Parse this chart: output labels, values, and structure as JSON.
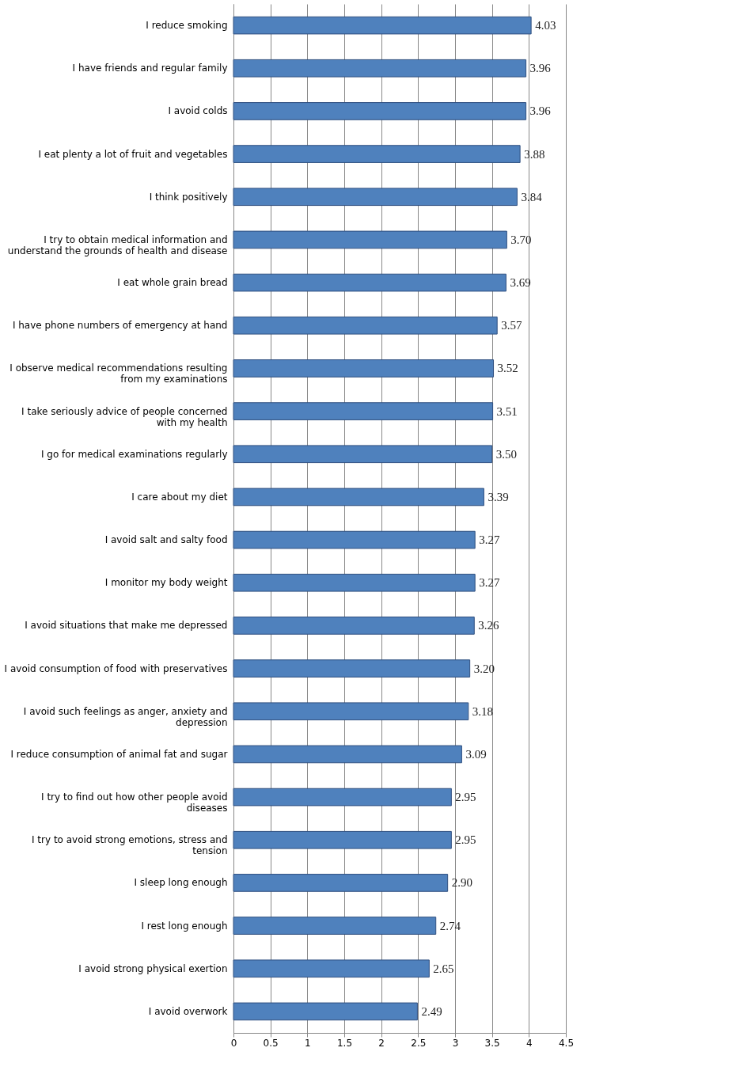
{
  "chart_data": {
    "type": "bar",
    "orientation": "horizontal",
    "categories": [
      "I reduce smoking",
      "I have friends and regular family",
      "I avoid colds",
      "I eat plenty a lot of fruit and vegetables",
      "I think positively",
      "I try to obtain medical information and understand the grounds of health and disease",
      "I eat whole grain bread",
      "I have phone numbers of emergency at hand",
      "I observe medical recommendations resulting from my examinations",
      "I take seriously advice of people concerned with my health",
      "I go for medical examinations regularly",
      "I care about my diet",
      "I avoid salt and salty food",
      "I monitor my body weight",
      "I avoid situations that make me depressed",
      "I avoid consumption of food with preservatives",
      "I avoid such feelings as anger, anxiety and depression",
      "I reduce consumption of animal fat and sugar",
      "I try to find out how other people avoid diseases",
      "I try to avoid strong emotions, stress and tension",
      "I sleep long enough",
      "I rest long enough",
      "I avoid strong physical exertion",
      "I avoid overwork"
    ],
    "values": [
      4.03,
      3.96,
      3.96,
      3.88,
      3.84,
      3.7,
      3.69,
      3.57,
      3.52,
      3.51,
      3.5,
      3.39,
      3.27,
      3.27,
      3.26,
      3.2,
      3.18,
      3.09,
      2.95,
      2.95,
      2.9,
      2.74,
      2.65,
      2.49
    ],
    "value_labels": [
      "4.03",
      "3.96",
      "3.96",
      "3.88",
      "3.84",
      "3.70",
      "3.69",
      "3.57",
      "3.52",
      "3.51",
      "3.50",
      "3.39",
      "3.27",
      "3.27",
      "3.26",
      "3.20",
      "3.18",
      "3.09",
      "2.95",
      "2.95",
      "2.90",
      "2.74",
      "2.65",
      "2.49"
    ],
    "color": "#4f81bd",
    "xlim": [
      0,
      4.5
    ],
    "xticks": [
      0,
      0.5,
      1,
      1.5,
      2,
      2.5,
      3,
      3.5,
      4,
      4.5
    ],
    "grid": "x"
  }
}
